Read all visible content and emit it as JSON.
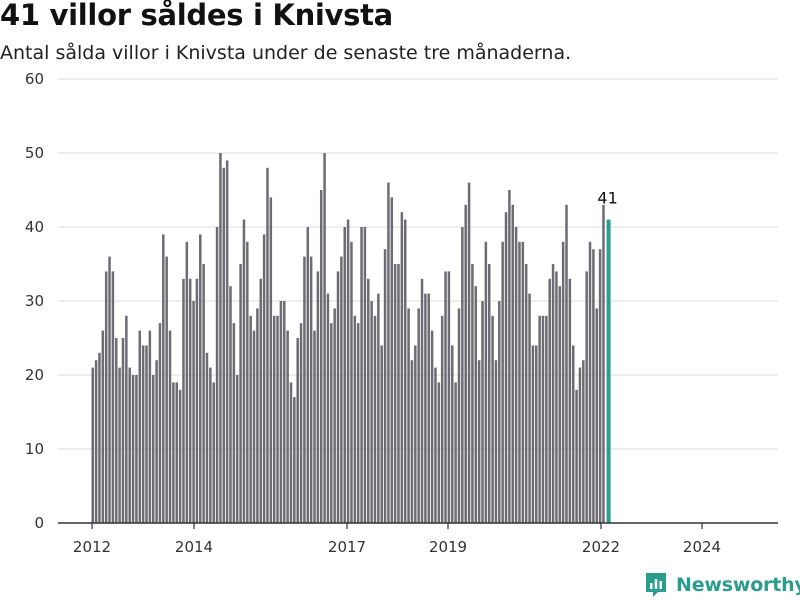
{
  "chart_data": {
    "type": "bar",
    "title": "41 villor såldes i Knivsta",
    "subtitle": "Antal sålda villor i Knivsta under de senaste tre månaderna.",
    "xlabel": "",
    "ylabel": "",
    "ylim": [
      0,
      60
    ],
    "y_ticks": [
      "0",
      "10",
      "20",
      "30",
      "40",
      "50",
      "60"
    ],
    "x_tick_labels": [
      "2012",
      "2014",
      "2017",
      "2019",
      "2022",
      "2024"
    ],
    "grid": true,
    "highlight_label": "41",
    "colors": {
      "bar": "#6d6c72",
      "highlight": "#2a9d8f",
      "grid": "#dcdcdc",
      "axis": "#333333"
    },
    "values": [
      21,
      22,
      23,
      26,
      34,
      36,
      34,
      25,
      21,
      25,
      28,
      21,
      20,
      20,
      26,
      24,
      24,
      26,
      20,
      22,
      27,
      39,
      36,
      26,
      19,
      19,
      18,
      33,
      38,
      33,
      30,
      33,
      39,
      35,
      23,
      21,
      19,
      40,
      50,
      48,
      49,
      32,
      27,
      20,
      35,
      41,
      38,
      28,
      26,
      29,
      33,
      39,
      48,
      44,
      28,
      28,
      30,
      30,
      26,
      19,
      17,
      25,
      27,
      36,
      40,
      36,
      26,
      34,
      45,
      50,
      31,
      27,
      29,
      34,
      36,
      40,
      41,
      38,
      28,
      27,
      40,
      40,
      33,
      30,
      28,
      31,
      24,
      37,
      46,
      44,
      35,
      35,
      42,
      41,
      29,
      22,
      24,
      29,
      33,
      31,
      31,
      26,
      21,
      19,
      28,
      34,
      34,
      24,
      19,
      29,
      40,
      43,
      46,
      35,
      32,
      22,
      30,
      38,
      35,
      28,
      22,
      30,
      38,
      42,
      45,
      43,
      40,
      38,
      38,
      35,
      31,
      24,
      24,
      28,
      28,
      28,
      33,
      35,
      34,
      32,
      38,
      43,
      33,
      24,
      18,
      21,
      22,
      34,
      38,
      37,
      29,
      37,
      43,
      41
    ]
  },
  "brand": {
    "name": "Newsworthy",
    "icon": "newsworthy-logo-icon"
  }
}
